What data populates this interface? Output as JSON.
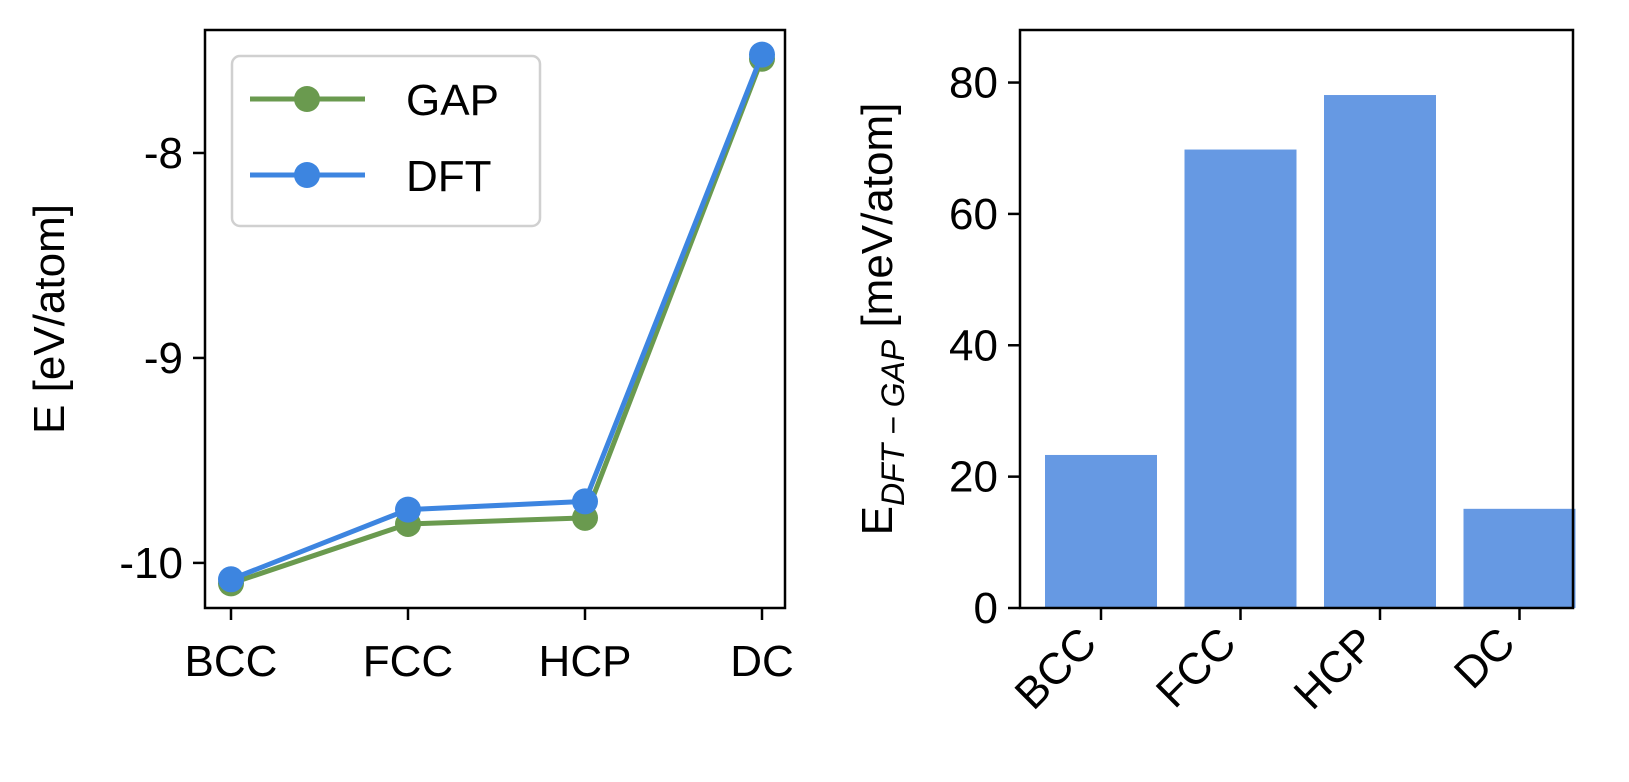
{
  "chart_data": [
    {
      "type": "line",
      "categories": [
        "BCC",
        "FCC",
        "HCP",
        "DC"
      ],
      "series": [
        {
          "name": "GAP",
          "values": [
            -10.1,
            -9.81,
            -9.78,
            -7.54
          ],
          "color": "#6a9a4f"
        },
        {
          "name": "DFT",
          "values": [
            -10.08,
            -9.74,
            -9.7,
            -7.52
          ],
          "color": "#3d85e0"
        }
      ],
      "ylabel": "E [eV/atom]",
      "yticks": [
        -8,
        -9,
        -10
      ],
      "ytick_labels": [
        "-8",
        "-9",
        "-10"
      ],
      "ylim": [
        -10.22,
        -7.4
      ],
      "legend": "top-left"
    },
    {
      "type": "bar",
      "categories": [
        "BCC",
        "FCC",
        "HCP",
        "DC"
      ],
      "values": [
        23.3,
        69.8,
        78.1,
        15.1
      ],
      "color": "#6699e3",
      "ylabel_main": "E",
      "ylabel_sub": "DFT − GAP",
      "ylabel_unit": " [meV/atom]",
      "yticks": [
        0,
        20,
        40,
        60,
        80
      ],
      "ytick_labels": [
        "0",
        "20",
        "40",
        "60",
        "80"
      ],
      "ylim": [
        0,
        88
      ]
    }
  ]
}
